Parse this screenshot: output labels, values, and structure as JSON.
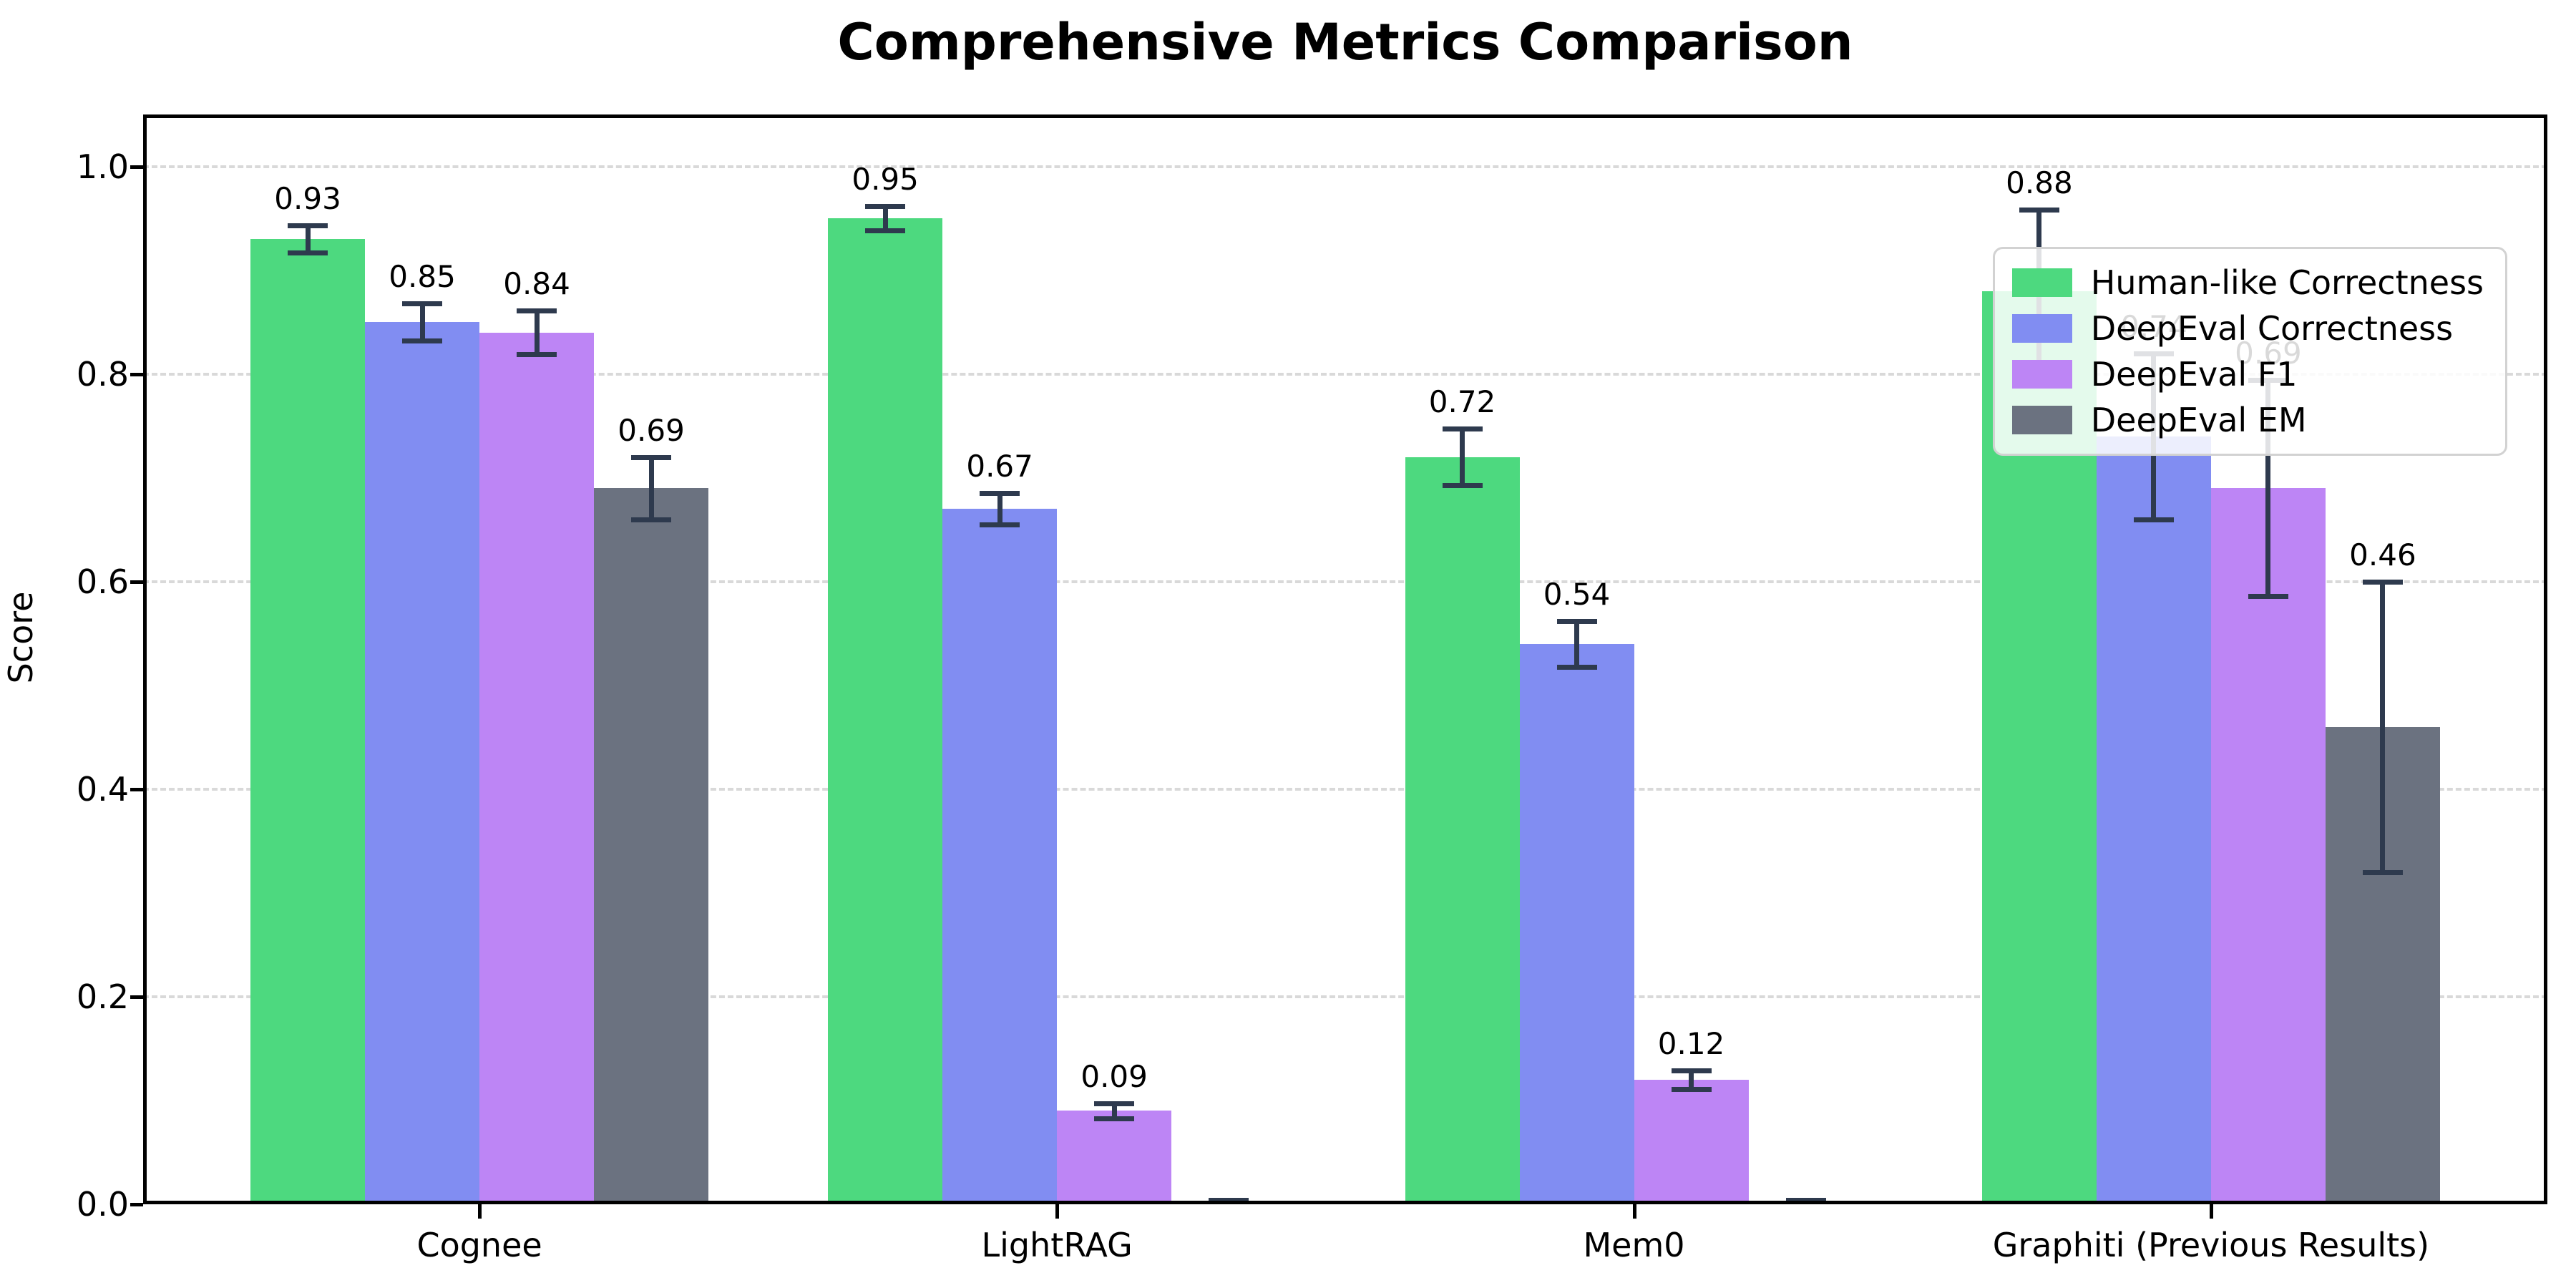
{
  "title": "Comprehensive Metrics Comparison",
  "chart_data": {
    "type": "bar",
    "title": "Comprehensive Metrics Comparison",
    "ylabel": "Score",
    "xlabel": "",
    "categories": [
      "Cognee",
      "LightRAG",
      "Mem0",
      "Graphiti (Previous Results)"
    ],
    "series": [
      {
        "name": "Human-like Correctness",
        "color": "#4dd97f",
        "values": [
          0.93,
          0.95,
          0.72,
          0.88
        ],
        "errors": [
          0.013,
          0.012,
          0.027,
          0.078
        ],
        "labels": [
          "0.93",
          "0.95",
          "0.72",
          "0.88"
        ]
      },
      {
        "name": "DeepEval Correctness",
        "color": "#818df2",
        "values": [
          0.85,
          0.67,
          0.54,
          0.74
        ],
        "errors": [
          0.018,
          0.015,
          0.022,
          0.08
        ],
        "labels": [
          "0.85",
          "0.67",
          "0.54",
          "0.74"
        ]
      },
      {
        "name": "DeepEval F1",
        "color": "#bd85f5",
        "values": [
          0.84,
          0.09,
          0.12,
          0.69
        ],
        "errors": [
          0.021,
          0.007,
          0.009,
          0.104
        ],
        "labels": [
          "0.84",
          "0.09",
          "0.12",
          "0.69"
        ]
      },
      {
        "name": "DeepEval EM",
        "color": "#6b7280",
        "values": [
          0.69,
          0.0,
          0.0,
          0.46
        ],
        "errors": [
          0.03,
          0.004,
          0.004,
          0.14
        ],
        "labels": [
          "0.69",
          "",
          "",
          "0.46"
        ]
      }
    ],
    "ylim": [
      0.0,
      1.05
    ],
    "yticks": [
      "0.0",
      "0.2",
      "0.4",
      "0.6",
      "0.8",
      "1.0"
    ],
    "grid": "horizontal-dashed",
    "legend_position": "upper-right",
    "error_bar_color": "#2e3a4e",
    "gridline_color": "#d9d9d9"
  }
}
